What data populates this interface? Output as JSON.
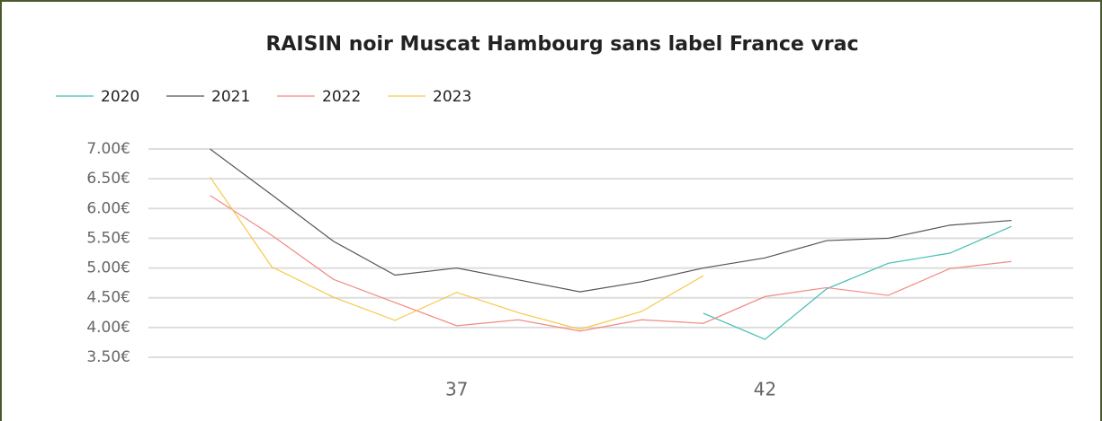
{
  "chart_data": {
    "type": "line",
    "title": "RAISIN noir Muscat Hambourg sans label France vrac",
    "x": [
      33,
      34,
      35,
      36,
      37,
      38,
      39,
      40,
      41,
      42,
      43,
      44,
      45,
      46
    ],
    "series": [
      {
        "name": "2020",
        "color": "#41bfb3",
        "values": [
          null,
          null,
          null,
          null,
          null,
          null,
          null,
          null,
          4.24,
          3.8,
          4.65,
          5.08,
          5.25,
          5.7
        ]
      },
      {
        "name": "2021",
        "color": "#555555",
        "values": [
          7.0,
          6.23,
          5.45,
          4.88,
          5.0,
          4.8,
          4.6,
          4.77,
          5.0,
          5.17,
          5.46,
          5.5,
          5.72,
          5.8
        ]
      },
      {
        "name": "2022",
        "color": "#f28a84",
        "values": [
          6.22,
          5.55,
          4.81,
          4.42,
          4.03,
          4.13,
          3.94,
          4.13,
          4.07,
          4.52,
          4.67,
          4.54,
          4.99,
          5.11
        ]
      },
      {
        "name": "2023",
        "color": "#f5c94a",
        "values": [
          6.53,
          5.02,
          4.51,
          4.12,
          4.59,
          4.25,
          3.97,
          4.27,
          4.87,
          null,
          null,
          null,
          null,
          null
        ]
      }
    ],
    "xlim": [
      32,
      47
    ],
    "xticks": [
      37,
      42
    ],
    "ylim": [
      3.5,
      7
    ],
    "yticks": [
      {
        "value": 3.5,
        "label": "3.50€"
      },
      {
        "value": 4,
        "label": "4.00€"
      },
      {
        "value": 4.5,
        "label": "4.50€"
      },
      {
        "value": 5,
        "label": "5.00€"
      },
      {
        "value": 5.5,
        "label": "5.50€"
      },
      {
        "value": 6,
        "label": "6.00€"
      },
      {
        "value": 6.5,
        "label": "6.50€"
      },
      {
        "value": 7,
        "label": "7.00€"
      }
    ],
    "grid": true,
    "legend": "top-left"
  }
}
